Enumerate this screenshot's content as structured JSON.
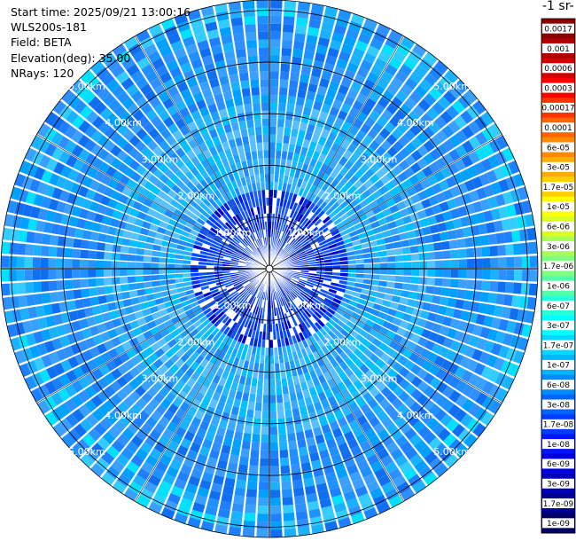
{
  "header": {
    "start_time": "Start time: 2025/09/21 13:00:16",
    "instrument": "WLS200s-181",
    "field": "Field: BETA",
    "elevation": "Elevation(deg): 35.00",
    "nrays": "NRays: 120"
  },
  "colorbar": {
    "title": "-1 sr-",
    "labels": [
      "0.0017",
      "0.001",
      "0.0006",
      "0.0003",
      "0.00017",
      "0.0001",
      "6e-05",
      "3e-05",
      "1.7e-05",
      "1e-05",
      "6e-06",
      "3e-06",
      "1.7e-06",
      "1e-06",
      "6e-07",
      "3e-07",
      "1.7e-07",
      "1e-07",
      "6e-08",
      "3e-08",
      "1.7e-08",
      "1e-08",
      "6e-09",
      "3e-09",
      "1.7e-09",
      "1e-09"
    ],
    "colors": [
      "#8b0000",
      "#b00000",
      "#d40000",
      "#ff0000",
      "#ff3300",
      "#ff6600",
      "#ff8c00",
      "#ffae00",
      "#ffd000",
      "#ffff00",
      "#d9ff26",
      "#aaff55",
      "#7fff7f",
      "#55ffaa",
      "#26ffd9",
      "#00ffff",
      "#00d8ff",
      "#00b4ff",
      "#008cff",
      "#0064ff",
      "#003cff",
      "#0014ff",
      "#0000e0",
      "#0000b8",
      "#00008f",
      "#000066"
    ]
  },
  "chart_data": {
    "type": "heatmap",
    "projection": "polar-ppi",
    "field": "BETA",
    "elevation_deg": 35.0,
    "nrays": 120,
    "range_rings_km": [
      1,
      2,
      3,
      4,
      5
    ],
    "range_labels": [
      "1.00km",
      "2.00km",
      "3.00km",
      "4.00km",
      "5.00km"
    ],
    "max_range_km": 5.2,
    "color_scale": "log",
    "value_range": [
      1e-09,
      0.0017
    ],
    "grid": true
  }
}
